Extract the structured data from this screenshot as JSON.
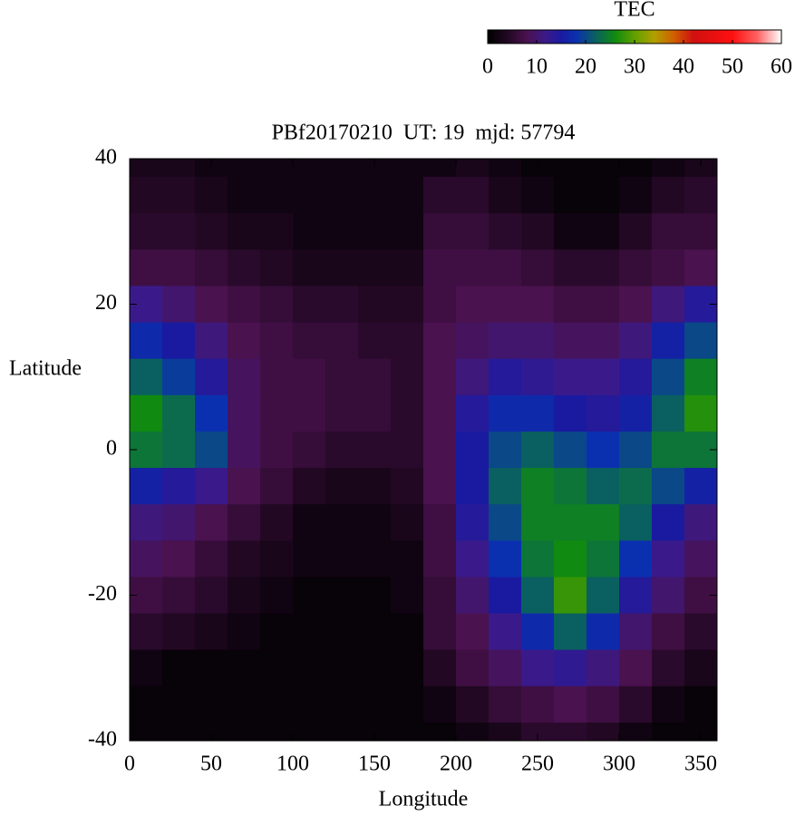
{
  "chart_data": {
    "type": "heatmap",
    "title": "PBf20170210  UT: 19  mjd: 57794",
    "xlabel": "Longitude",
    "ylabel": "Latitude",
    "x": [
      10,
      30,
      50,
      70,
      90,
      110,
      130,
      150,
      170,
      190,
      210,
      230,
      250,
      270,
      290,
      310,
      330,
      350
    ],
    "y": [
      40,
      35,
      30,
      25,
      20,
      15,
      10,
      5,
      0,
      -5,
      -10,
      -15,
      -20,
      -25,
      -30,
      -35,
      -40
    ],
    "z": [
      [
        3,
        3,
        2,
        2,
        2,
        2,
        2,
        2,
        2,
        2,
        3,
        2,
        1,
        1,
        1,
        1,
        2,
        3
      ],
      [
        4,
        4,
        3,
        2,
        2,
        2,
        2,
        2,
        2,
        5,
        5,
        3,
        2,
        1,
        1,
        2,
        4,
        5
      ],
      [
        5,
        5,
        4,
        3,
        3,
        2,
        2,
        2,
        2,
        6,
        6,
        5,
        4,
        2,
        2,
        4,
        6,
        6
      ],
      [
        7,
        7,
        6,
        5,
        4,
        3,
        3,
        3,
        3,
        7,
        7,
        7,
        6,
        5,
        5,
        6,
        7,
        8
      ],
      [
        12,
        10,
        8,
        7,
        6,
        5,
        5,
        4,
        4,
        7,
        8,
        8,
        8,
        7,
        7,
        8,
        11,
        14
      ],
      [
        17,
        15,
        11,
        8,
        7,
        6,
        6,
        5,
        5,
        8,
        9,
        10,
        10,
        9,
        9,
        11,
        16,
        20
      ],
      [
        22,
        19,
        14,
        9,
        7,
        7,
        6,
        6,
        5,
        8,
        11,
        14,
        13,
        12,
        12,
        14,
        20,
        25
      ],
      [
        26,
        23,
        18,
        9,
        7,
        7,
        6,
        6,
        5,
        8,
        14,
        17,
        17,
        15,
        14,
        16,
        22,
        27
      ],
      [
        24,
        23,
        20,
        9,
        7,
        6,
        5,
        5,
        5,
        8,
        15,
        20,
        22,
        20,
        18,
        20,
        24,
        24
      ],
      [
        16,
        14,
        12,
        8,
        6,
        4,
        3,
        3,
        4,
        8,
        15,
        22,
        25,
        24,
        22,
        23,
        20,
        16
      ],
      [
        11,
        10,
        8,
        6,
        4,
        2,
        2,
        2,
        3,
        7,
        14,
        20,
        25,
        25,
        25,
        22,
        15,
        11
      ],
      [
        9,
        8,
        6,
        4,
        3,
        2,
        2,
        2,
        2,
        7,
        12,
        18,
        24,
        26,
        24,
        18,
        12,
        9
      ],
      [
        7,
        6,
        5,
        3,
        2,
        1,
        1,
        1,
        2,
        6,
        10,
        15,
        22,
        28,
        22,
        14,
        10,
        7
      ],
      [
        5,
        4,
        3,
        2,
        1,
        1,
        1,
        1,
        1,
        6,
        8,
        12,
        17,
        22,
        17,
        10,
        7,
        5
      ],
      [
        2,
        1,
        1,
        1,
        1,
        1,
        1,
        1,
        1,
        4,
        7,
        9,
        12,
        13,
        11,
        8,
        5,
        3
      ],
      [
        1,
        1,
        1,
        1,
        1,
        1,
        1,
        1,
        1,
        2,
        4,
        6,
        7,
        8,
        7,
        5,
        2,
        1
      ],
      [
        1,
        1,
        1,
        1,
        1,
        1,
        1,
        1,
        1,
        1,
        2,
        3,
        5,
        5,
        4,
        2,
        1,
        1
      ]
    ],
    "xlim": [
      0,
      360
    ],
    "ylim": [
      -40,
      40
    ],
    "xticks": [
      0,
      50,
      100,
      150,
      200,
      250,
      300,
      350
    ],
    "yticks": [
      -40,
      -20,
      0,
      20,
      40
    ],
    "colorbar": {
      "label": "TEC",
      "lim": [
        0,
        60
      ],
      "ticks": [
        0,
        10,
        20,
        30,
        40,
        50,
        60
      ]
    },
    "colorscale": [
      [
        0,
        "#000000"
      ],
      [
        5,
        "#2a0a2c"
      ],
      [
        8,
        "#4a124f"
      ],
      [
        12,
        "#3a1a8a"
      ],
      [
        15,
        "#1a1aa0"
      ],
      [
        18,
        "#0a30b0"
      ],
      [
        22,
        "#0a6060"
      ],
      [
        26,
        "#108a10"
      ],
      [
        30,
        "#60a000"
      ],
      [
        34,
        "#b0a000"
      ],
      [
        38,
        "#d06000"
      ],
      [
        42,
        "#d01010"
      ],
      [
        50,
        "#ff1010"
      ],
      [
        55,
        "#ff6060"
      ],
      [
        60,
        "#ffffff"
      ]
    ]
  }
}
